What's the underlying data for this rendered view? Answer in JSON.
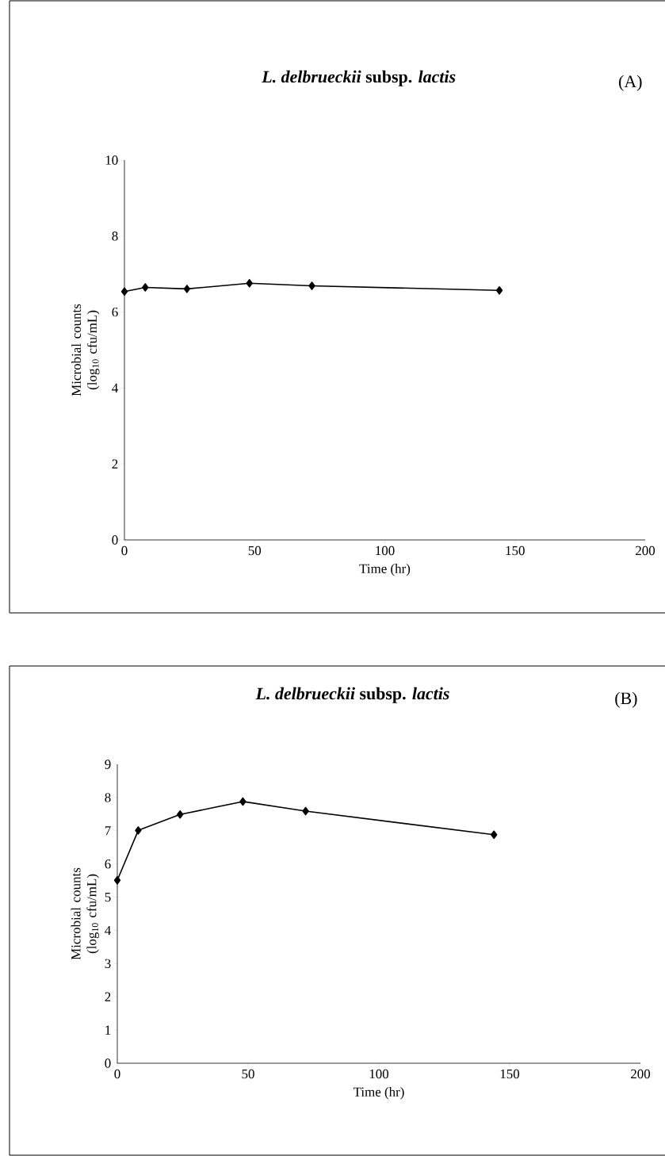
{
  "chart_data": [
    {
      "type": "line",
      "title": "*L. delbrueckii* subsp. *lactis*",
      "annotations": [
        "(A)"
      ],
      "xlabel": "Time (hr)",
      "ylabel": "Microbial counts (log$_{10}$ cfu/mL)",
      "x": [
        0,
        8,
        24,
        48,
        72,
        144
      ],
      "series": [
        {
          "color": "#000000",
          "values": [
            6.54,
            6.65,
            6.61,
            6.76,
            6.69,
            6.57
          ]
        }
      ],
      "xlim": [
        0,
        200
      ],
      "xticks": [
        0,
        50,
        100,
        150,
        200
      ],
      "ylim": [
        0,
        10
      ],
      "yticks": [
        0,
        2,
        4,
        6,
        8,
        10
      ],
      "marker": "diamond"
    },
    {
      "type": "line",
      "title": "*L. delbrueckii* subsp. *lactis*",
      "annotations": [
        "(B)"
      ],
      "xlabel": "Time (hr)",
      "ylabel": "Microbial counts (log$_{10}$ cfu/mL)",
      "x": [
        0,
        8,
        24,
        48,
        72,
        144
      ],
      "series": [
        {
          "color": "#000000",
          "values": [
            5.51,
            7.01,
            7.49,
            7.88,
            7.59,
            6.88
          ]
        }
      ],
      "xlim": [
        0,
        200
      ],
      "xticks": [
        0,
        50,
        100,
        150,
        200
      ],
      "ylim": [
        0,
        9
      ],
      "yticks": [
        0,
        1,
        2,
        3,
        4,
        5,
        6,
        7,
        8,
        9
      ],
      "marker": "diamond"
    }
  ]
}
